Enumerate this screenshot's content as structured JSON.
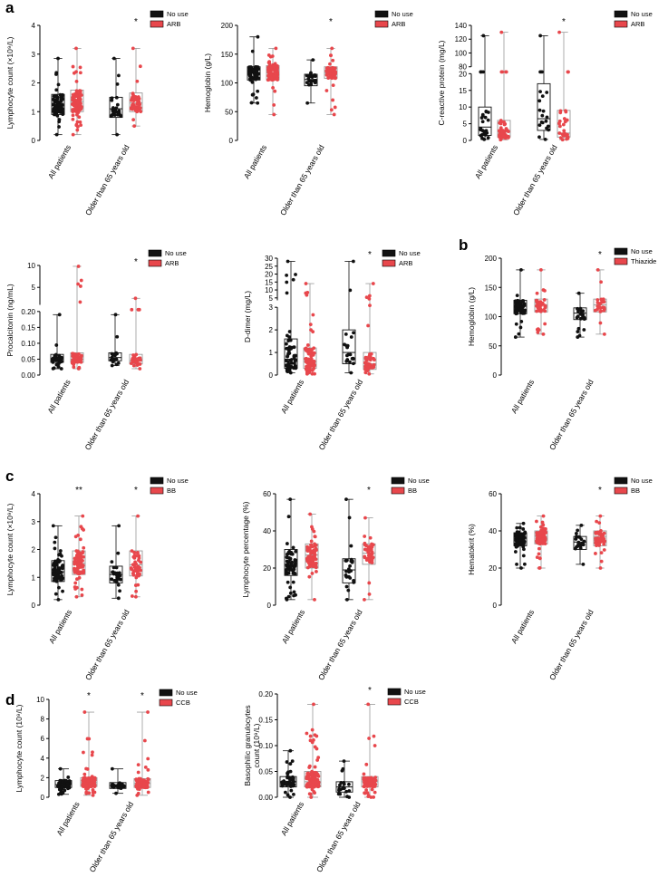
{
  "figure": {
    "panel_labels": [
      "a",
      "b",
      "c",
      "d"
    ],
    "colors": {
      "no_use": "#111111",
      "drug": "#e8474c",
      "drug_box": "#999999"
    }
  },
  "chart_data": [
    {
      "type": "box",
      "panel": "a",
      "ylabel": "Lymphocyte count (×10⁹/L)",
      "yticks": [
        "0",
        "1",
        "2",
        "3",
        "4"
      ],
      "ylim": [
        0,
        4
      ],
      "break": null,
      "categories": [
        "All patients",
        "Older than 65 years old"
      ],
      "legend": [
        "No use",
        "ARB"
      ],
      "significance": [
        "",
        "*"
      ],
      "series": [
        {
          "name": "No use",
          "groups": [
            {
              "min": 0.2,
              "q1": 0.9,
              "median": 1.2,
              "q3": 1.6,
              "max": 2.85,
              "n": 70
            },
            {
              "min": 0.2,
              "q1": 0.8,
              "median": 1.1,
              "q3": 1.5,
              "max": 2.85,
              "n": 25
            }
          ]
        },
        {
          "name": "ARB",
          "groups": [
            {
              "min": 0.2,
              "q1": 1.0,
              "median": 1.35,
              "q3": 1.75,
              "max": 3.2,
              "n": 110
            },
            {
              "min": 0.5,
              "q1": 1.0,
              "median": 1.3,
              "q3": 1.65,
              "max": 3.2,
              "n": 55
            }
          ]
        }
      ]
    },
    {
      "type": "box",
      "panel": "a",
      "ylabel": "Hemoglobin (g/L)",
      "yticks": [
        "0",
        "50",
        "100",
        "150",
        "200"
      ],
      "ylim": [
        0,
        200
      ],
      "break": null,
      "categories": [
        "All patients",
        "Older than 65 years old"
      ],
      "legend": [
        "No use",
        "ARB"
      ],
      "significance": [
        "",
        "*"
      ],
      "series": [
        {
          "name": "No use",
          "groups": [
            {
              "min": 65,
              "q1": 105,
              "median": 118,
              "q3": 128,
              "max": 180,
              "n": 70
            },
            {
              "min": 65,
              "q1": 95,
              "median": 106,
              "q3": 115,
              "max": 140,
              "n": 25
            }
          ]
        },
        {
          "name": "ARB",
          "groups": [
            {
              "min": 45,
              "q1": 105,
              "median": 118,
              "q3": 130,
              "max": 160,
              "n": 110
            },
            {
              "min": 45,
              "q1": 108,
              "median": 117,
              "q3": 128,
              "max": 160,
              "n": 55
            }
          ]
        }
      ]
    },
    {
      "type": "box",
      "panel": "a",
      "ylabel": "C-reactive protein (mg/L)",
      "yticks": [
        "0",
        "5",
        "10",
        "15",
        "20",
        "80",
        "100",
        "120",
        "140"
      ],
      "ylim": [
        0,
        140
      ],
      "break": {
        "lower": [
          0,
          20
        ],
        "upper": [
          80,
          140
        ]
      },
      "categories": [
        "All patients",
        "Older than 65 years old"
      ],
      "legend": [
        "No use",
        "ARB"
      ],
      "significance": [
        "",
        "*"
      ],
      "series": [
        {
          "name": "No use",
          "groups": [
            {
              "min": 0.3,
              "q1": 1.5,
              "median": 4,
              "q3": 10,
              "max": 125,
              "n": 30
            },
            {
              "min": 0.3,
              "q1": 3,
              "median": 6.5,
              "q3": 17,
              "max": 125,
              "n": 20
            }
          ]
        },
        {
          "name": "ARB",
          "groups": [
            {
              "min": 0.2,
              "q1": 1,
              "median": 2.5,
              "q3": 6,
              "max": 130,
              "n": 45
            },
            {
              "min": 0.2,
              "q1": 1,
              "median": 2.2,
              "q3": 9,
              "max": 130,
              "n": 30
            }
          ]
        }
      ]
    },
    {
      "type": "box",
      "panel": "a",
      "ylabel": "Procalcitonin (ng/mL)",
      "yticks": [
        "0.00",
        "0.05",
        "0.10",
        "0.15",
        "0.20",
        "5",
        "10"
      ],
      "ylim": [
        0,
        10
      ],
      "break": {
        "lower": [
          0,
          0.2
        ],
        "upper": [
          1,
          10
        ]
      },
      "categories": [
        "All patients",
        "Older than 65 years old"
      ],
      "legend": [
        "No use",
        "ARB"
      ],
      "significance": [
        "",
        "*"
      ],
      "series": [
        {
          "name": "No use",
          "groups": [
            {
              "min": 0.02,
              "q1": 0.04,
              "median": 0.05,
              "q3": 0.065,
              "max": 0.19,
              "n": 35
            },
            {
              "min": 0.03,
              "q1": 0.045,
              "median": 0.055,
              "q3": 0.07,
              "max": 0.19,
              "n": 18
            }
          ]
        },
        {
          "name": "ARB",
          "groups": [
            {
              "min": 0.02,
              "q1": 0.04,
              "median": 0.05,
              "q3": 0.07,
              "max": 9.8,
              "n": 55
            },
            {
              "min": 0.02,
              "q1": 0.035,
              "median": 0.045,
              "q3": 0.065,
              "max": 2.5,
              "n": 35
            }
          ]
        }
      ]
    },
    {
      "type": "box",
      "panel": "a",
      "ylabel": "D-dimer (mg/L)",
      "yticks": [
        "0",
        "1",
        "2",
        "3",
        "5",
        "10",
        "15",
        "20",
        "25",
        "30"
      ],
      "ylim": [
        0,
        30
      ],
      "break": {
        "lower": [
          0,
          3
        ],
        "upper": [
          3.5,
          30
        ]
      },
      "categories": [
        "All patients",
        "Older than 65 years old"
      ],
      "legend": [
        "No use",
        "ARB"
      ],
      "significance": [
        "",
        "*"
      ],
      "series": [
        {
          "name": "No use",
          "groups": [
            {
              "min": 0.1,
              "q1": 0.3,
              "median": 0.7,
              "q3": 1.6,
              "max": 28,
              "n": 60
            },
            {
              "min": 0.1,
              "q1": 0.5,
              "median": 1.0,
              "q3": 2.0,
              "max": 28,
              "n": 20
            }
          ]
        },
        {
          "name": "ARB",
          "groups": [
            {
              "min": 0.05,
              "q1": 0.3,
              "median": 0.6,
              "q3": 1.2,
              "max": 14,
              "n": 90
            },
            {
              "min": 0.05,
              "q1": 0.25,
              "median": 0.5,
              "q3": 1.0,
              "max": 14,
              "n": 50
            }
          ]
        }
      ]
    },
    {
      "type": "box",
      "panel": "b",
      "ylabel": "Hemoglobin (g/L)",
      "yticks": [
        "0",
        "50",
        "100",
        "150",
        "200"
      ],
      "ylim": [
        0,
        200
      ],
      "break": null,
      "categories": [
        "All patients",
        "Older than 65 years old"
      ],
      "legend": [
        "No use",
        "Thiazide"
      ],
      "significance": [
        "",
        "*"
      ],
      "series": [
        {
          "name": "No use",
          "groups": [
            {
              "min": 65,
              "q1": 105,
              "median": 118,
              "q3": 128,
              "max": 180,
              "n": 70
            },
            {
              "min": 65,
              "q1": 95,
              "median": 106,
              "q3": 115,
              "max": 140,
              "n": 25
            }
          ]
        },
        {
          "name": "Thiazide",
          "groups": [
            {
              "min": 70,
              "q1": 108,
              "median": 120,
              "q3": 130,
              "max": 180,
              "n": 40
            },
            {
              "min": 70,
              "q1": 108,
              "median": 120,
              "q3": 130,
              "max": 180,
              "n": 25
            }
          ]
        }
      ]
    },
    {
      "type": "box",
      "panel": "c",
      "ylabel": "Lymphocyte count (×10⁹/L)",
      "yticks": [
        "0",
        "1",
        "2",
        "3",
        "4"
      ],
      "ylim": [
        0,
        4
      ],
      "break": null,
      "categories": [
        "All patients",
        "Older than 65 years old"
      ],
      "legend": [
        "No use",
        "BB"
      ],
      "significance": [
        "**",
        "*"
      ],
      "series": [
        {
          "name": "No use",
          "groups": [
            {
              "min": 0.2,
              "q1": 0.85,
              "median": 1.2,
              "q3": 1.6,
              "max": 2.85,
              "n": 70
            },
            {
              "min": 0.25,
              "q1": 0.8,
              "median": 1.1,
              "q3": 1.4,
              "max": 2.85,
              "n": 25
            }
          ]
        },
        {
          "name": "BB",
          "groups": [
            {
              "min": 0.3,
              "q1": 1.1,
              "median": 1.5,
              "q3": 1.95,
              "max": 3.2,
              "n": 80
            },
            {
              "min": 0.3,
              "q1": 1.05,
              "median": 1.45,
              "q3": 1.95,
              "max": 3.2,
              "n": 45
            }
          ]
        }
      ]
    },
    {
      "type": "box",
      "panel": "c",
      "ylabel": "Lymphocyte percentage (%)",
      "yticks": [
        "0",
        "20",
        "40",
        "60"
      ],
      "ylim": [
        0,
        60
      ],
      "break": null,
      "categories": [
        "All patients",
        "Older than 65 years old"
      ],
      "legend": [
        "No use",
        "BB"
      ],
      "significance": [
        "",
        "*"
      ],
      "series": [
        {
          "name": "No use",
          "groups": [
            {
              "min": 3,
              "q1": 16,
              "median": 22,
              "q3": 30,
              "max": 57,
              "n": 70
            },
            {
              "min": 3,
              "q1": 12,
              "median": 19,
              "q3": 25,
              "max": 57,
              "n": 25
            }
          ]
        },
        {
          "name": "BB",
          "groups": [
            {
              "min": 3,
              "q1": 20,
              "median": 27,
              "q3": 33,
              "max": 49,
              "n": 80
            },
            {
              "min": 3,
              "q1": 22,
              "median": 28,
              "q3": 33,
              "max": 47,
              "n": 45
            }
          ]
        }
      ]
    },
    {
      "type": "box",
      "panel": "c",
      "ylabel": "Hematokrit  (%)",
      "yticks": [
        "0",
        "20",
        "40",
        "60"
      ],
      "ylim": [
        0,
        60
      ],
      "break": null,
      "categories": [
        "All patients",
        "Older than 65 years old"
      ],
      "legend": [
        "No use",
        "BB"
      ],
      "significance": [
        "",
        "*"
      ],
      "series": [
        {
          "name": "No use",
          "groups": [
            {
              "min": 20,
              "q1": 32,
              "median": 36,
              "q3": 39,
              "max": 44,
              "n": 80
            },
            {
              "min": 22,
              "q1": 30,
              "median": 34,
              "q3": 37,
              "max": 43,
              "n": 25
            }
          ]
        },
        {
          "name": "BB",
          "groups": [
            {
              "min": 20,
              "q1": 33,
              "median": 37,
              "q3": 40,
              "max": 48,
              "n": 90
            },
            {
              "min": 20,
              "q1": 32,
              "median": 37,
              "q3": 40,
              "max": 48,
              "n": 50
            }
          ]
        }
      ]
    },
    {
      "type": "box",
      "panel": "d",
      "ylabel": "Lymphocyte count (10⁹/L)",
      "yticks": [
        "0",
        "2",
        "4",
        "6",
        "8",
        "10"
      ],
      "ylim": [
        0,
        10
      ],
      "break": null,
      "categories": [
        "All patients",
        "Older than 65 years old"
      ],
      "legend": [
        "No use",
        "CCB"
      ],
      "significance": [
        "*",
        "*"
      ],
      "series": [
        {
          "name": "No use",
          "groups": [
            {
              "min": 0.3,
              "q1": 1.0,
              "median": 1.3,
              "q3": 1.7,
              "max": 2.9,
              "n": 70
            },
            {
              "min": 0.4,
              "q1": 0.9,
              "median": 1.2,
              "q3": 1.5,
              "max": 2.9,
              "n": 25
            }
          ]
        },
        {
          "name": "CCB",
          "groups": [
            {
              "min": 0.2,
              "q1": 1.1,
              "median": 1.5,
              "q3": 2.0,
              "max": 8.7,
              "n": 150
            },
            {
              "min": 0.2,
              "q1": 1.0,
              "median": 1.4,
              "q3": 1.9,
              "max": 8.7,
              "n": 100
            }
          ]
        }
      ]
    },
    {
      "type": "box",
      "panel": "d",
      "ylabel": "Basophilic granulocytes count (10⁹/L)",
      "ylabel_lines": [
        "Basophilic granulocytes",
        "count (10⁹/L)"
      ],
      "yticks": [
        "0.00",
        "0.05",
        "0.10",
        "0.15",
        "0.20"
      ],
      "ylim": [
        0,
        0.2
      ],
      "break": null,
      "categories": [
        "All patients",
        "Older than 65 years old"
      ],
      "legend": [
        "No use",
        "CCB"
      ],
      "significance": [
        "",
        "*"
      ],
      "series": [
        {
          "name": "No use",
          "groups": [
            {
              "min": 0.0,
              "q1": 0.02,
              "median": 0.03,
              "q3": 0.04,
              "max": 0.09,
              "n": 60
            },
            {
              "min": 0.0,
              "q1": 0.01,
              "median": 0.02,
              "q3": 0.03,
              "max": 0.07,
              "n": 20
            }
          ]
        },
        {
          "name": "CCB",
          "groups": [
            {
              "min": 0.0,
              "q1": 0.02,
              "median": 0.03,
              "q3": 0.05,
              "max": 0.18,
              "n": 150
            },
            {
              "min": 0.0,
              "q1": 0.02,
              "median": 0.03,
              "q3": 0.04,
              "max": 0.18,
              "n": 100
            }
          ]
        }
      ]
    }
  ]
}
